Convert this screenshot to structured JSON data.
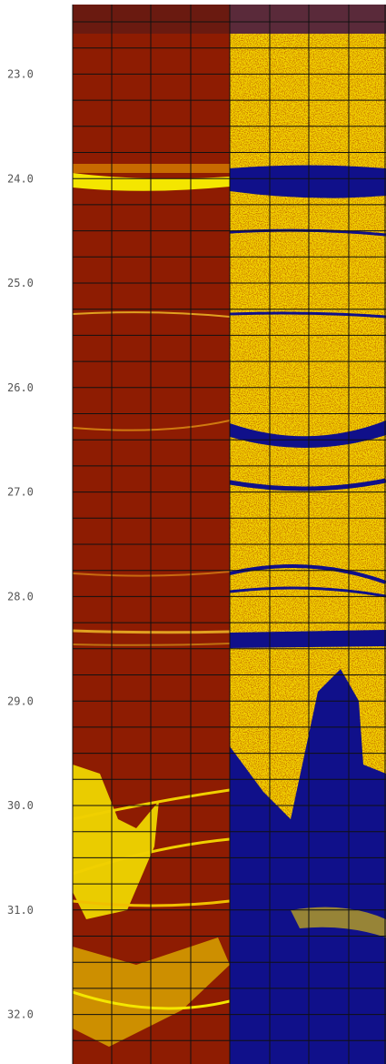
{
  "depth_labels": [
    "23.0",
    "24.0",
    "25.0",
    "26.0",
    "27.0",
    "28.0",
    "29.0",
    "30.0",
    "31.0",
    "32.0"
  ]
}
